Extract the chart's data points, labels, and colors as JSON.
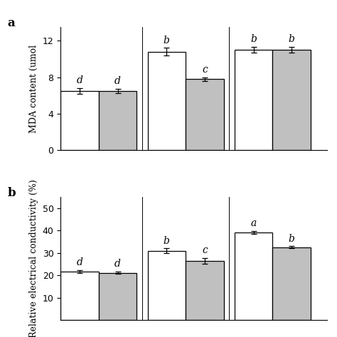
{
  "panel_a": {
    "ylabel": "MDA content (umol",
    "yticks": [
      0,
      4,
      8,
      12
    ],
    "ylim": [
      0,
      13.5
    ],
    "white_bars": [
      6.5,
      10.8,
      11.0
    ],
    "gray_bars": [
      6.5,
      7.8,
      11.0
    ],
    "white_errors": [
      0.3,
      0.4,
      0.35
    ],
    "gray_errors": [
      0.25,
      0.2,
      0.3
    ],
    "white_labels": [
      "d",
      "b",
      "b"
    ],
    "gray_labels": [
      "d",
      "c",
      "b"
    ],
    "panel_label": "a"
  },
  "panel_b": {
    "ylabel": "Relative electrical conductivity (%)",
    "yticks": [
      10,
      20,
      30,
      40,
      50
    ],
    "ylim": [
      0,
      55
    ],
    "white_bars": [
      21.7,
      31.0,
      39.2
    ],
    "gray_bars": [
      21.2,
      26.5,
      32.5
    ],
    "white_errors": [
      0.7,
      1.0,
      0.6
    ],
    "gray_errors": [
      0.5,
      1.2,
      0.5
    ],
    "white_labels": [
      "d",
      "b",
      "a"
    ],
    "gray_labels": [
      "d",
      "c",
      "b"
    ],
    "panel_label": "b"
  },
  "bar_width": 0.35,
  "x_positions": [
    0.35,
    1.15,
    1.95
  ],
  "white_color": "#FFFFFF",
  "gray_color": "#C0C0C0",
  "edge_color": "#000000",
  "tick_fontsize": 9,
  "label_fontsize": 10,
  "panel_label_fontsize": 12,
  "ylabel_fontsize": 9,
  "dividers": [
    0.75,
    1.55
  ],
  "xlim": [
    0.0,
    2.45
  ]
}
